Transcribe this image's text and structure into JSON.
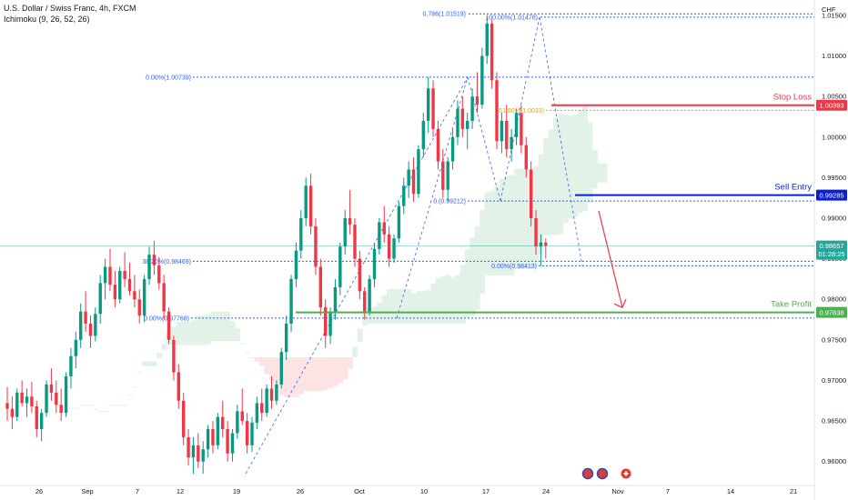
{
  "header": {
    "title": "U.S. Dollar / Swiss Franc, 4h, FXCM",
    "indicator": "Ichimoku (9, 26, 52, 26)",
    "currency": "CHF"
  },
  "colors": {
    "up": "#089981",
    "down": "#f23645",
    "stop": "#f23645",
    "entry": "#0d1fd6",
    "target": "#4caf50",
    "fib": "#2962ff",
    "fib_gold": "#f0a500",
    "arrow": "#f23645",
    "cloud_bull": "#e3f2e6",
    "cloud_bear": "#fde3e3",
    "price_line": "#26a69a"
  },
  "chart_data": {
    "type": "candlestick",
    "symbol": "USDCHF",
    "timeframe": "4h",
    "ylim": [
      0.9575,
      1.016
    ],
    "y_ticks": [
      "1.01500",
      "1.01000",
      "1.00500",
      "1.00000",
      "0.99500",
      "0.99000",
      "0.98500",
      "0.98000",
      "0.97500",
      "0.97000",
      "0.96500",
      "0.96000"
    ],
    "x_ticks": [
      "26",
      "Sep",
      "7",
      "12",
      "19",
      "26",
      "Oct",
      "10",
      "17",
      "24",
      "Nov",
      "7",
      "14",
      "21"
    ],
    "levels": [
      {
        "name": "Stop Loss",
        "value": "1.00393"
      },
      {
        "name": "Sell Entry",
        "value": "0.99285"
      },
      {
        "name": "Take Profit",
        "value": "0.97838"
      }
    ],
    "current_price": {
      "value": "0.98657",
      "countdown": "01:28:25"
    },
    "fib_labels": [
      {
        "text": "0.786(1.01519)",
        "price": 1.01519
      },
      {
        "text": "100.00%(1.01478)",
        "price": 1.01478
      },
      {
        "text": "0.00%(1.00739)",
        "price": 1.00739
      },
      {
        "text": "61.80%(1.0033)",
        "price": 1.0033
      },
      {
        "text": "0.(0.99212)",
        "price": 0.99212
      },
      {
        "text": "38.20%(0.98469)",
        "price": 0.98469
      },
      {
        "text": "0.00%(0.98413)",
        "price": 0.98413
      },
      {
        "text": "0.00%(0.97768)",
        "price": 0.97768
      }
    ],
    "candles": [
      [
        0.9672,
        0.9692,
        0.965,
        0.9665
      ],
      [
        0.9665,
        0.968,
        0.964,
        0.9655
      ],
      [
        0.9655,
        0.969,
        0.965,
        0.9685
      ],
      [
        0.9685,
        0.97,
        0.9668,
        0.9672
      ],
      [
        0.9672,
        0.969,
        0.9655,
        0.968
      ],
      [
        0.968,
        0.9698,
        0.966,
        0.9668
      ],
      [
        0.9668,
        0.9675,
        0.963,
        0.964
      ],
      [
        0.964,
        0.9665,
        0.9625,
        0.966
      ],
      [
        0.966,
        0.97,
        0.9655,
        0.9695
      ],
      [
        0.9695,
        0.9715,
        0.9675,
        0.9685
      ],
      [
        0.9685,
        0.97,
        0.966,
        0.967
      ],
      [
        0.967,
        0.969,
        0.965,
        0.966
      ],
      [
        0.966,
        0.971,
        0.9655,
        0.9705
      ],
      [
        0.9705,
        0.974,
        0.969,
        0.973
      ],
      [
        0.973,
        0.976,
        0.9715,
        0.975
      ],
      [
        0.975,
        0.9795,
        0.974,
        0.9785
      ],
      [
        0.9785,
        0.981,
        0.976,
        0.977
      ],
      [
        0.977,
        0.978,
        0.974,
        0.9755
      ],
      [
        0.9755,
        0.979,
        0.9748,
        0.9782
      ],
      [
        0.9782,
        0.983,
        0.977,
        0.982
      ],
      [
        0.982,
        0.985,
        0.98,
        0.984
      ],
      [
        0.984,
        0.9862,
        0.981,
        0.9818
      ],
      [
        0.9818,
        0.9835,
        0.979,
        0.98
      ],
      [
        0.98,
        0.984,
        0.9795,
        0.9835
      ],
      [
        0.9835,
        0.9858,
        0.9815,
        0.9825
      ],
      [
        0.9825,
        0.9845,
        0.9805,
        0.981
      ],
      [
        0.981,
        0.983,
        0.979,
        0.98
      ],
      [
        0.98,
        0.9812,
        0.977,
        0.978
      ],
      [
        0.978,
        0.983,
        0.9772,
        0.9825
      ],
      [
        0.9825,
        0.9865,
        0.9818,
        0.9855
      ],
      [
        0.9855,
        0.9872,
        0.983,
        0.9842
      ],
      [
        0.9842,
        0.9852,
        0.9812,
        0.982
      ],
      [
        0.982,
        0.983,
        0.9775,
        0.9785
      ],
      [
        0.9785,
        0.979,
        0.9745,
        0.975
      ],
      [
        0.975,
        0.9755,
        0.97,
        0.971
      ],
      [
        0.971,
        0.972,
        0.9665,
        0.9675
      ],
      [
        0.9675,
        0.9685,
        0.962,
        0.963
      ],
      [
        0.963,
        0.964,
        0.9595,
        0.9605
      ],
      [
        0.9605,
        0.963,
        0.9585,
        0.962
      ],
      [
        0.962,
        0.9635,
        0.9592,
        0.96
      ],
      [
        0.96,
        0.9625,
        0.9585,
        0.9615
      ],
      [
        0.9615,
        0.9645,
        0.9605,
        0.964
      ],
      [
        0.964,
        0.965,
        0.961,
        0.962
      ],
      [
        0.962,
        0.966,
        0.9615,
        0.9655
      ],
      [
        0.9655,
        0.9675,
        0.963,
        0.964
      ],
      [
        0.964,
        0.965,
        0.96,
        0.961
      ],
      [
        0.961,
        0.964,
        0.96,
        0.9635
      ],
      [
        0.9635,
        0.967,
        0.9628,
        0.9662
      ],
      [
        0.9662,
        0.969,
        0.9645,
        0.965
      ],
      [
        0.965,
        0.966,
        0.961,
        0.962
      ],
      [
        0.962,
        0.9655,
        0.9612,
        0.9648
      ],
      [
        0.9648,
        0.968,
        0.964,
        0.9672
      ],
      [
        0.9672,
        0.969,
        0.965,
        0.966
      ],
      [
        0.966,
        0.9695,
        0.9655,
        0.969
      ],
      [
        0.969,
        0.9705,
        0.9665,
        0.9675
      ],
      [
        0.9675,
        0.97,
        0.967,
        0.9695
      ],
      [
        0.9695,
        0.974,
        0.969,
        0.9735
      ],
      [
        0.9735,
        0.978,
        0.9725,
        0.977
      ],
      [
        0.977,
        0.983,
        0.976,
        0.9825
      ],
      [
        0.9825,
        0.987,
        0.9815,
        0.986
      ],
      [
        0.986,
        0.991,
        0.985,
        0.99
      ],
      [
        0.99,
        0.995,
        0.989,
        0.994
      ],
      [
        0.994,
        0.9955,
        0.988,
        0.989
      ],
      [
        0.989,
        0.99,
        0.983,
        0.984
      ],
      [
        0.984,
        0.985,
        0.978,
        0.979
      ],
      [
        0.979,
        0.98,
        0.974,
        0.9755
      ],
      [
        0.9755,
        0.979,
        0.9745,
        0.9785
      ],
      [
        0.9785,
        0.9825,
        0.9775,
        0.9815
      ],
      [
        0.9815,
        0.987,
        0.9805,
        0.9865
      ],
      [
        0.9865,
        0.991,
        0.9855,
        0.99
      ],
      [
        0.99,
        0.9935,
        0.988,
        0.9892
      ],
      [
        0.9892,
        0.99,
        0.984,
        0.985
      ],
      [
        0.985,
        0.986,
        0.98,
        0.981
      ],
      [
        0.981,
        0.9815,
        0.9775,
        0.9785
      ],
      [
        0.9785,
        0.983,
        0.978,
        0.9825
      ],
      [
        0.9825,
        0.987,
        0.9815,
        0.9862
      ],
      [
        0.9862,
        0.99,
        0.9855,
        0.9895
      ],
      [
        0.9895,
        0.9915,
        0.987,
        0.988
      ],
      [
        0.988,
        0.989,
        0.984,
        0.985
      ],
      [
        0.985,
        0.988,
        0.9845,
        0.9875
      ],
      [
        0.9875,
        0.992,
        0.987,
        0.9915
      ],
      [
        0.9915,
        0.995,
        0.9905,
        0.994
      ],
      [
        0.994,
        0.997,
        0.9925,
        0.996
      ],
      [
        0.996,
        0.9975,
        0.992,
        0.993
      ],
      [
        0.993,
        0.999,
        0.9925,
        0.9985
      ],
      [
        0.9985,
        1.003,
        0.9975,
        1.002
      ],
      [
        1.002,
        1.0074,
        1.0005,
        1.006
      ],
      [
        1.006,
        1.007,
        1.0,
        1.001
      ],
      [
        1.001,
        1.002,
        0.996,
        0.997
      ],
      [
        0.997,
        0.9985,
        0.9925,
        0.9935
      ],
      [
        0.9935,
        0.9975,
        0.9921,
        0.997
      ],
      [
        0.997,
        1.001,
        0.996,
        1.0
      ],
      [
        1.0,
        1.0045,
        0.999,
        1.0035
      ],
      [
        1.0035,
        1.005,
        1.0,
        1.001
      ],
      [
        1.001,
        1.003,
        0.9985,
        1.002
      ],
      [
        1.002,
        1.006,
        1.001,
        1.005
      ],
      [
        1.005,
        1.008,
        1.003,
        1.004
      ],
      [
        1.004,
        1.011,
        1.0035,
        1.01
      ],
      [
        1.01,
        1.0148,
        1.009,
        1.014
      ],
      [
        1.014,
        1.0145,
        1.006,
        1.007
      ],
      [
        1.007,
        1.008,
        0.9985,
        0.9995
      ],
      [
        0.9995,
        1.003,
        0.998,
        1.002
      ],
      [
        1.002,
        1.004,
        0.9975,
        0.9985
      ],
      [
        0.9985,
        1.001,
        0.997,
        1.0
      ],
      [
        1.0,
        1.0035,
        0.999,
        1.003
      ],
      [
        1.003,
        1.0039,
        0.998,
        0.999
      ],
      [
        0.999,
        1.0,
        0.995,
        0.996
      ],
      [
        0.996,
        0.997,
        0.989,
        0.99
      ],
      [
        0.99,
        0.991,
        0.9855,
        0.9865
      ],
      [
        0.9865,
        0.988,
        0.9841,
        0.987
      ],
      [
        0.987,
        0.9875,
        0.985,
        0.9866
      ]
    ]
  }
}
